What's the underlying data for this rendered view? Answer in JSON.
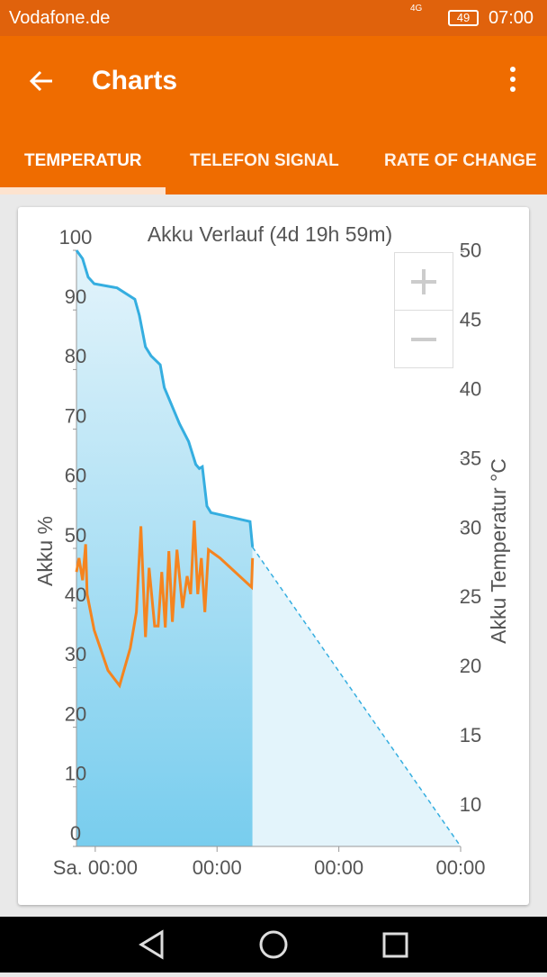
{
  "status_bar": {
    "carrier": "Vodafone.de",
    "network": "4G",
    "battery": "49",
    "time": "07:00"
  },
  "app_bar": {
    "title": "Charts"
  },
  "tabs": [
    "TEMPERATUR",
    "TELEFON SIGNAL",
    "RATE OF CHANGE"
  ],
  "chart_data": {
    "type": "line",
    "title": "Akku Verlauf (4d 19h 59m)",
    "y_label": "Akku %",
    "y2_label": "Akku Temperatur °C",
    "xlim": [
      -3.7,
      72
    ],
    "ylim": [
      0,
      100
    ],
    "y2lim": [
      7.1,
      50.1
    ],
    "xticks": [
      {
        "value": 0,
        "label": "Sa. 00:00"
      },
      {
        "value": 24,
        "label": "00:00"
      },
      {
        "value": 48,
        "label": "00:00"
      },
      {
        "value": 72,
        "label": "00:00"
      }
    ],
    "yticks": [
      0,
      10,
      20,
      30,
      40,
      50,
      60,
      70,
      80,
      90,
      100
    ],
    "y2ticks": [
      10,
      15,
      20,
      25,
      30,
      35,
      40,
      45,
      50
    ],
    "grid": false,
    "series": [
      {
        "color": "#35aee0",
        "area": true,
        "axis": "y",
        "x": [
          -3.7,
          -2.5,
          -1.4,
          -0.2,
          4.3,
          7.8,
          8.7,
          9.9,
          11.0,
          12.8,
          13.6,
          16.6,
          18.4,
          19.8,
          20.5,
          21.1,
          22.0,
          22.8,
          30.5,
          31.0
        ],
        "values": [
          100,
          98.6,
          95.5,
          94.4,
          93.7,
          91.8,
          89.1,
          83.8,
          82.3,
          80.8,
          77,
          70.9,
          67.9,
          64.1,
          63.4,
          63.7,
          57.1,
          56,
          54.5,
          50.2
        ]
      },
      {
        "color": "#35aee0",
        "area": true,
        "dashed": true,
        "axis": "y",
        "x": [
          31.0,
          72
        ],
        "values": [
          50.2,
          0
        ]
      },
      {
        "color": "#f5841f",
        "axis": "y2",
        "x": [
          -3.7,
          -3.2,
          -2.5,
          -1.9,
          -1.6,
          -0.2,
          2.5,
          4.8,
          6.9,
          8.1,
          9.0,
          9.9,
          10.6,
          11.7,
          12.4,
          13.1,
          13.8,
          14.5,
          15.2,
          16.1,
          17.2,
          18.1,
          18.8,
          19.5,
          20.2,
          20.9,
          21.6,
          22.3,
          24.6,
          30.8,
          31.0
        ],
        "values": [
          26.9,
          27.9,
          26.3,
          28.9,
          25.3,
          22.7,
          19.8,
          18.7,
          21.4,
          24.0,
          30.2,
          22.2,
          27.2,
          23.0,
          23.0,
          26.9,
          22.9,
          28.4,
          23.3,
          28.5,
          24.3,
          26.6,
          25.3,
          30.6,
          25.3,
          27.9,
          24.0,
          28.5,
          27.9,
          25.8,
          27.9
        ]
      }
    ]
  }
}
